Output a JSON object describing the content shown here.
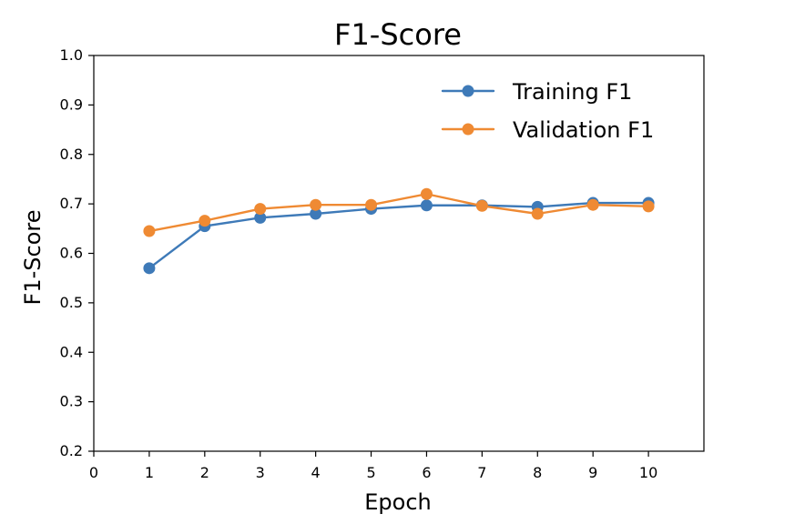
{
  "chart_data": {
    "type": "line",
    "title": "F1-Score",
    "xlabel": "Epoch",
    "ylabel": "F1-Score",
    "xlim": [
      0,
      11
    ],
    "ylim": [
      0.2,
      1.0
    ],
    "xticks": [
      0,
      1,
      2,
      3,
      4,
      5,
      6,
      7,
      8,
      9,
      10
    ],
    "xtick_labels": [
      "0",
      "1",
      "2",
      "3",
      "4",
      "5",
      "6",
      "7",
      "8",
      "9",
      "10"
    ],
    "yticks": [
      0.2,
      0.3,
      0.4,
      0.5,
      0.6,
      0.7,
      0.8,
      0.9,
      1.0
    ],
    "ytick_labels": [
      "0.2",
      "0.3",
      "0.4",
      "0.5",
      "0.6",
      "0.7",
      "0.8",
      "0.9",
      "1.0"
    ],
    "grid": false,
    "legend_position": "top-right",
    "x": [
      1,
      2,
      3,
      4,
      5,
      6,
      7,
      8,
      9,
      10
    ],
    "series": [
      {
        "name": "Training F1",
        "color": "#3e7ab8",
        "values": [
          0.57,
          0.655,
          0.672,
          0.68,
          0.69,
          0.697,
          0.697,
          0.694,
          0.702,
          0.702
        ]
      },
      {
        "name": "Validation F1",
        "color": "#ef8a33",
        "values": [
          0.645,
          0.666,
          0.69,
          0.698,
          0.698,
          0.72,
          0.696,
          0.68,
          0.698,
          0.695
        ]
      }
    ]
  }
}
